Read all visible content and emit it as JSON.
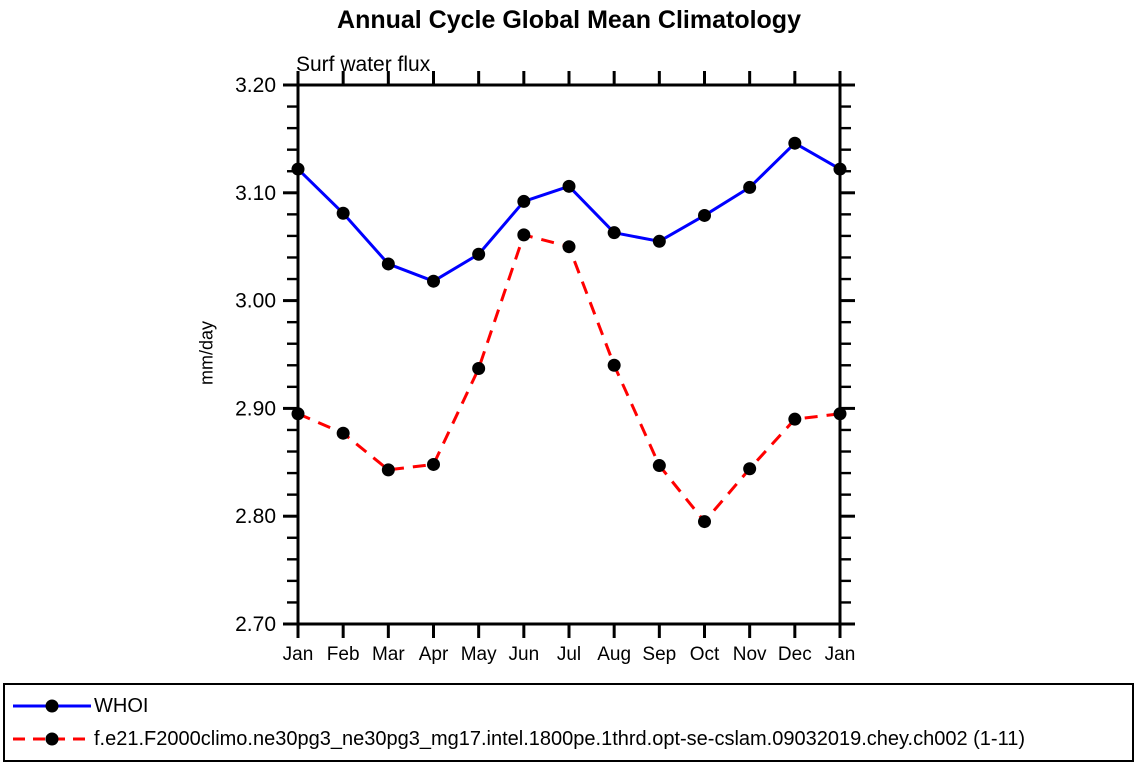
{
  "chart_data": {
    "type": "line",
    "title": "Annual Cycle Global Mean Climatology",
    "subtitle": "Surf water flux",
    "ylabel": "mm/day",
    "categories": [
      "Jan",
      "Feb",
      "Mar",
      "Apr",
      "May",
      "Jun",
      "Jul",
      "Aug",
      "Sep",
      "Oct",
      "Nov",
      "Dec",
      "Jan"
    ],
    "ylim": [
      2.7,
      3.2
    ],
    "ytick_step": 0.1,
    "yminor_step": 0.02,
    "ytick_labels": [
      "2.70",
      "2.80",
      "2.90",
      "3.00",
      "3.10",
      "3.20"
    ],
    "grid": false,
    "legend_position": "bottom",
    "axis_color": "#000000",
    "series": [
      {
        "name": "WHOI",
        "color": "#0000ff",
        "style": "solid",
        "marker": "circle",
        "marker_color": "#000000",
        "values": [
          3.122,
          3.081,
          3.034,
          3.018,
          3.043,
          3.092,
          3.106,
          3.063,
          3.055,
          3.079,
          3.105,
          3.146,
          3.122
        ]
      },
      {
        "name": "f.e21.F2000climo.ne30pg3_ne30pg3_mg17.intel.1800pe.1thrd.opt-se-cslam.09032019.chey.ch002 (1-11)",
        "color": "#ff0000",
        "style": "dashed",
        "marker": "circle",
        "marker_color": "#000000",
        "values": [
          2.895,
          2.877,
          2.843,
          2.848,
          2.937,
          3.061,
          3.05,
          2.94,
          2.847,
          2.795,
          2.844,
          2.89,
          2.895
        ]
      }
    ]
  }
}
